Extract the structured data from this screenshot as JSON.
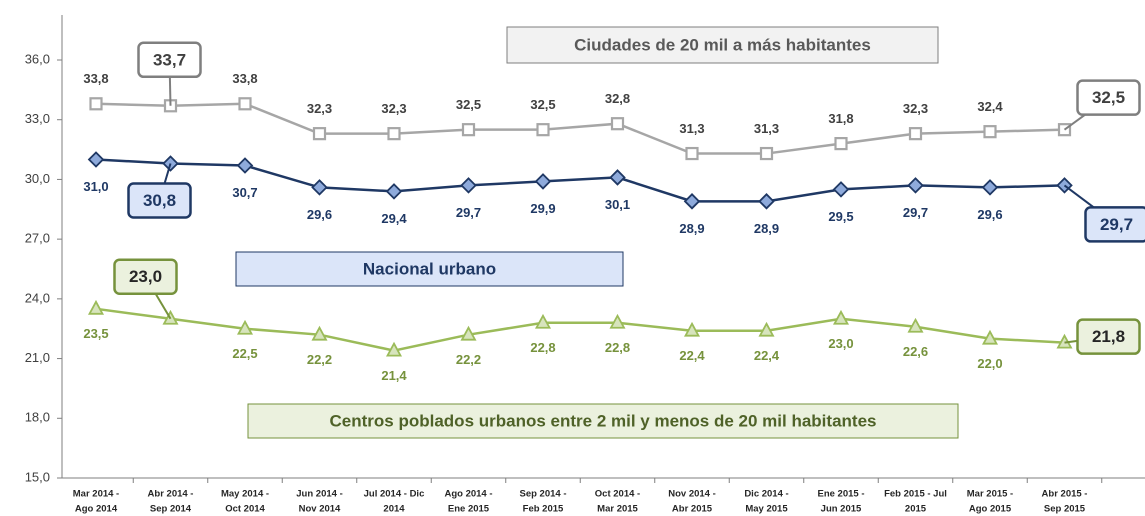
{
  "chart_data": {
    "type": "line",
    "categories": [
      [
        "Mar 2014 -",
        "Ago 2014"
      ],
      [
        "Abr 2014 -",
        "Sep 2014"
      ],
      [
        "May 2014 -",
        "Oct 2014"
      ],
      [
        "Jun 2014 -",
        "Nov 2014"
      ],
      [
        "Jul 2014 - Dic",
        "2014"
      ],
      [
        "Ago 2014 -",
        "Ene 2015"
      ],
      [
        "Sep 2014 -",
        "Feb 2015"
      ],
      [
        "Oct 2014 -",
        "Mar 2015"
      ],
      [
        "Nov 2014 -",
        "Abr 2015"
      ],
      [
        "Dic 2014 -",
        "May 2015"
      ],
      [
        "Ene 2015 -",
        "Jun 2015"
      ],
      [
        "Feb 2015 - Jul",
        "2015"
      ],
      [
        "Mar 2015 -",
        "Ago 2015"
      ],
      [
        "Abr 2015 -",
        "Sep 2015"
      ]
    ],
    "ylim": [
      15,
      36
    ],
    "yticks": [
      {
        "value": 15,
        "label": "15,0"
      },
      {
        "value": 18,
        "label": "18,0"
      },
      {
        "value": 21,
        "label": "21,0"
      },
      {
        "value": 24,
        "label": "24,0"
      },
      {
        "value": 27,
        "label": "27,0"
      },
      {
        "value": 30,
        "label": "30,0"
      },
      {
        "value": 33,
        "label": "33,0"
      },
      {
        "value": 36,
        "label": "36,0"
      }
    ],
    "grid": false,
    "callout_points": [
      1,
      13
    ],
    "series": [
      {
        "name": "Ciudades de 20 mil a más habitantes",
        "color": "#a6a6a6",
        "values": [
          33.8,
          33.7,
          33.8,
          32.3,
          32.3,
          32.5,
          32.5,
          32.8,
          31.3,
          31.3,
          31.8,
          32.3,
          32.4,
          32.5
        ],
        "value_labels": [
          "33,8",
          "33,7",
          "33,8",
          "32,3",
          "32,3",
          "32,5",
          "32,5",
          "32,8",
          "31,3",
          "31,3",
          "31,8",
          "32,3",
          "32,4",
          "32,5"
        ]
      },
      {
        "name": "Nacional urbano",
        "color": "#1f3864",
        "values": [
          31.0,
          30.8,
          30.7,
          29.6,
          29.4,
          29.7,
          29.9,
          30.1,
          28.9,
          28.9,
          29.5,
          29.7,
          29.6,
          29.7
        ],
        "value_labels": [
          "31,0",
          "30,8",
          "30,7",
          "29,6",
          "29,4",
          "29,7",
          "29,9",
          "30,1",
          "28,9",
          "28,9",
          "29,5",
          "29,7",
          "29,6",
          "29,7"
        ]
      },
      {
        "name": "Centros poblados urbanos entre 2 mil y menos de 20 mil habitantes",
        "color": "#9bbb59",
        "values": [
          23.5,
          23.0,
          22.5,
          22.2,
          21.4,
          22.2,
          22.8,
          22.8,
          22.4,
          22.4,
          23.0,
          22.6,
          22.0,
          21.8
        ],
        "value_labels": [
          "23,5",
          "23,0",
          "22,5",
          "22,2",
          "21,4",
          "22,2",
          "22,8",
          "22,8",
          "22,4",
          "22,4",
          "23,0",
          "22,6",
          "22,0",
          "21,8"
        ]
      }
    ]
  }
}
